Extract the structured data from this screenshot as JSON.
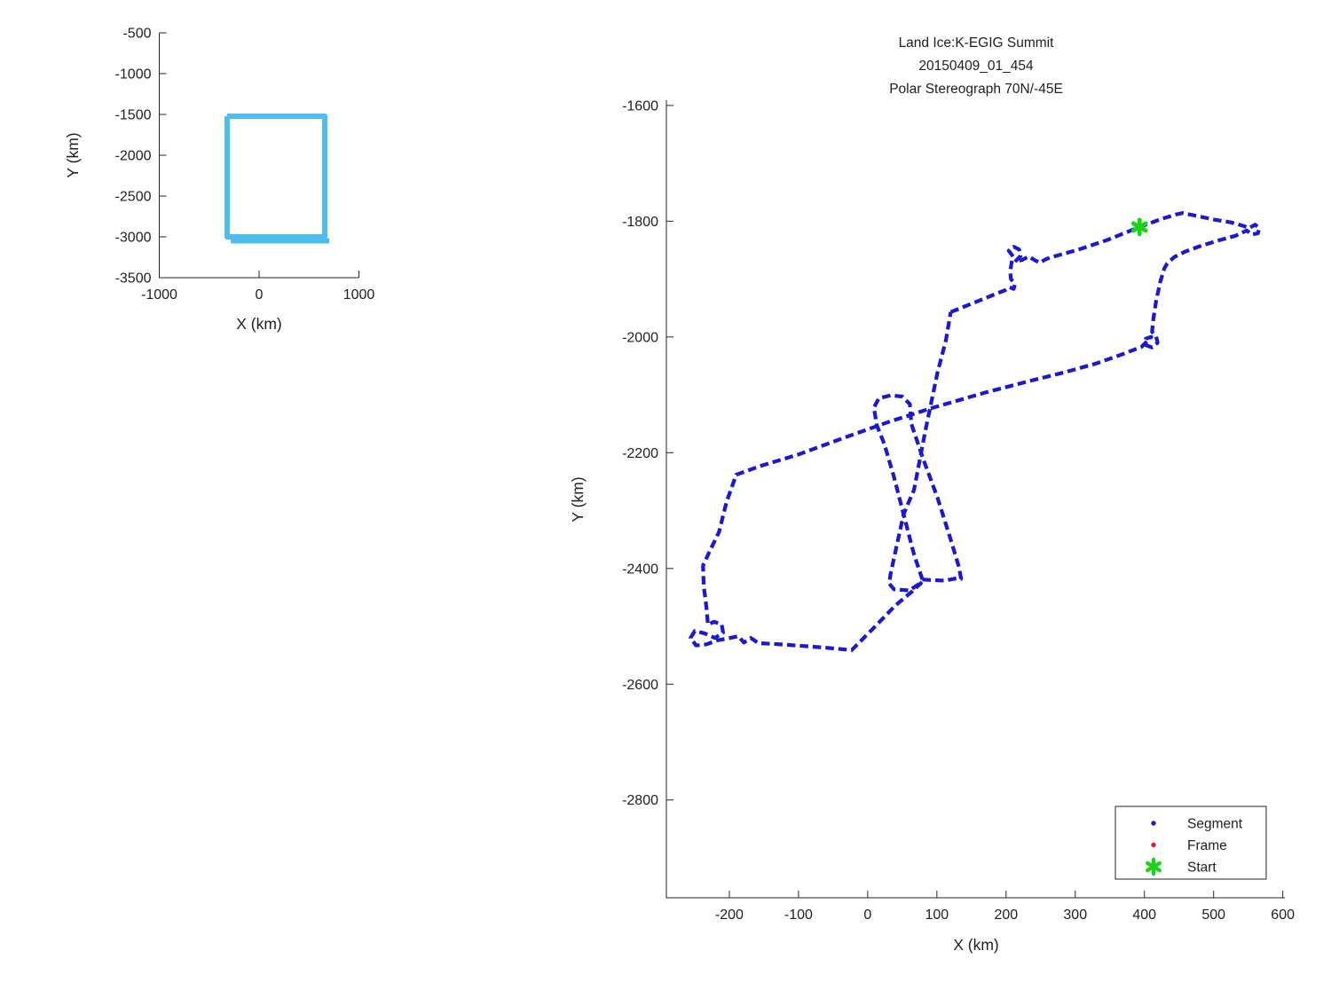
{
  "figure": {
    "bg": "#ffffff"
  },
  "colors": {
    "track_blue": "#1818D6",
    "box_blue": "#4DBEEE",
    "start_green": "#1DD11D",
    "frame_red": "#DD2222",
    "axis": "#262626"
  },
  "chart_data": [
    {
      "id": "overview",
      "type": "line",
      "xlabel": "X (km)",
      "ylabel": "Y (km)",
      "x_ticks": [
        -1000,
        0,
        1000
      ],
      "y_ticks": [
        -500,
        -1000,
        -1500,
        -2000,
        -2500,
        -3000,
        -3500
      ],
      "x_range": [
        -1000,
        1000
      ],
      "y_range": [
        -500,
        -3500
      ],
      "grid": false,
      "series": [
        {
          "name": "flight-bounding-box",
          "color": "#4DBEEE",
          "width": 6,
          "points": [
            [
              -320,
              -1522
            ],
            [
              658,
              -1522
            ],
            [
              658,
              -3000
            ],
            [
              -320,
              -3000
            ],
            [
              -320,
              -1522
            ]
          ]
        },
        {
          "name": "flight-bounding-box-second-pass",
          "color": "#4DBEEE",
          "width": 6,
          "points": [
            [
              -284,
              -3049
            ],
            [
              702,
              -3049
            ]
          ]
        }
      ]
    },
    {
      "id": "flight",
      "type": "line",
      "title_lines": [
        "Land Ice:K-EGIG Summit",
        "20150409_01_454",
        "Polar Stereograph 70N/-45E"
      ],
      "xlabel": "X (km)",
      "ylabel": "Y (km)",
      "x_ticks": [
        -200,
        -100,
        0,
        100,
        200,
        300,
        400,
        500,
        600
      ],
      "y_ticks": [
        -1600,
        -1800,
        -2000,
        -2200,
        -2400,
        -2600,
        -2800
      ],
      "x_range": [
        -291,
        603
      ],
      "y_range": [
        -1591,
        -2969
      ],
      "grid": false,
      "start_marker": {
        "x": 393,
        "y": -1810
      },
      "series": [
        {
          "name": "segment-track-main-circuit",
          "color": "#1818D6",
          "width": 4.2,
          "dash": "9.5 5",
          "points": [
            [
              120,
              -1957
            ],
            [
              199,
              -1919
            ],
            [
              205,
              -1914
            ],
            [
              211,
              -1917
            ],
            [
              213,
              -1909
            ],
            [
              207,
              -1900
            ],
            [
              206,
              -1887
            ],
            [
              208,
              -1872
            ],
            [
              210,
              -1861
            ],
            [
              204,
              -1851
            ],
            [
              211,
              -1844
            ],
            [
              219,
              -1849
            ],
            [
              221,
              -1860
            ],
            [
              213,
              -1870
            ],
            [
              223,
              -1867
            ],
            [
              233,
              -1861
            ],
            [
              241,
              -1867
            ],
            [
              249,
              -1872
            ],
            [
              257,
              -1866
            ],
            [
              263,
              -1863
            ],
            [
              305,
              -1849
            ],
            [
              345,
              -1833
            ],
            [
              393,
              -1810
            ],
            [
              425,
              -1796
            ],
            [
              447,
              -1788
            ],
            [
              455,
              -1786
            ],
            [
              472,
              -1790
            ],
            [
              500,
              -1797
            ],
            [
              525,
              -1802
            ],
            [
              543,
              -1808
            ],
            [
              551,
              -1812
            ],
            [
              560,
              -1806
            ],
            [
              566,
              -1812
            ],
            [
              564,
              -1821
            ],
            [
              555,
              -1823
            ],
            [
              548,
              -1816
            ],
            [
              532,
              -1825
            ],
            [
              505,
              -1834
            ],
            [
              478,
              -1844
            ],
            [
              458,
              -1853
            ],
            [
              443,
              -1862
            ],
            [
              433,
              -1873
            ],
            [
              429,
              -1881
            ],
            [
              423,
              -1904
            ],
            [
              417,
              -1937
            ],
            [
              413,
              -1968
            ],
            [
              411,
              -1991
            ],
            [
              417,
              -1999
            ],
            [
              419,
              -2010
            ],
            [
              411,
              -2018
            ],
            [
              402,
              -2014
            ],
            [
              402,
              -2003
            ],
            [
              410,
              -2000
            ],
            [
              396,
              -2017
            ],
            [
              368,
              -2030
            ],
            [
              330,
              -2046
            ],
            [
              285,
              -2061
            ],
            [
              231,
              -2077
            ],
            [
              170,
              -2096
            ],
            [
              92,
              -2123
            ],
            [
              30,
              -2147
            ],
            [
              -36,
              -2175
            ],
            [
              -100,
              -2203
            ],
            [
              -155,
              -2223
            ],
            [
              -190,
              -2238
            ],
            [
              -204,
              -2285
            ],
            [
              -215,
              -2337
            ],
            [
              -229,
              -2372
            ],
            [
              -238,
              -2395
            ],
            [
              -237,
              -2430
            ],
            [
              -233,
              -2468
            ],
            [
              -231,
              -2497
            ],
            [
              -222,
              -2492
            ],
            [
              -211,
              -2497
            ],
            [
              -209,
              -2511
            ],
            [
              -221,
              -2520
            ],
            [
              -236,
              -2512
            ],
            [
              -250,
              -2508
            ],
            [
              -256,
              -2520
            ],
            [
              -248,
              -2533
            ],
            [
              -233,
              -2531
            ],
            [
              -217,
              -2524
            ],
            [
              -202,
              -2521
            ],
            [
              -187,
              -2517
            ],
            [
              -179,
              -2528
            ],
            [
              -169,
              -2520
            ],
            [
              -158,
              -2529
            ],
            [
              -115,
              -2532
            ],
            [
              -60,
              -2537
            ],
            [
              -23,
              -2541
            ],
            [
              6,
              -2506
            ],
            [
              40,
              -2464
            ],
            [
              64,
              -2440
            ],
            [
              79,
              -2423
            ],
            [
              60,
              -2438
            ],
            [
              38,
              -2436
            ],
            [
              31,
              -2426
            ],
            [
              33,
              -2410
            ],
            [
              41,
              -2366
            ],
            [
              52,
              -2306
            ],
            [
              67,
              -2264
            ],
            [
              83,
              -2164
            ],
            [
              101,
              -2061
            ],
            [
              113,
              -2006
            ],
            [
              120,
              -1957
            ]
          ]
        },
        {
          "name": "segment-track-summit-hairpin",
          "color": "#1818D6",
          "width": 4.2,
          "dash": "9.5 5",
          "points": [
            [
              79,
              -2419
            ],
            [
              90,
              -2420
            ],
            [
              112,
              -2421
            ],
            [
              128,
              -2417
            ],
            [
              135,
              -2418
            ],
            [
              132,
              -2398
            ],
            [
              120,
              -2350
            ],
            [
              101,
              -2278
            ],
            [
              80,
              -2210
            ],
            [
              63,
              -2150
            ],
            [
              61,
              -2116
            ],
            [
              50,
              -2103
            ],
            [
              33,
              -2101
            ],
            [
              16,
              -2106
            ],
            [
              9,
              -2122
            ],
            [
              13,
              -2152
            ],
            [
              24,
              -2185
            ],
            [
              38,
              -2242
            ],
            [
              52,
              -2307
            ],
            [
              67,
              -2376
            ],
            [
              79,
              -2419
            ]
          ]
        }
      ],
      "legend": {
        "entries": [
          {
            "label": "Segment",
            "marker": "dot",
            "color": "#1818D6"
          },
          {
            "label": "Frame",
            "marker": "dot",
            "color": "#DD2222"
          },
          {
            "label": "Start",
            "marker": "asterisk",
            "color": "#1DD11D"
          }
        ],
        "position": "bottom-right"
      }
    }
  ]
}
